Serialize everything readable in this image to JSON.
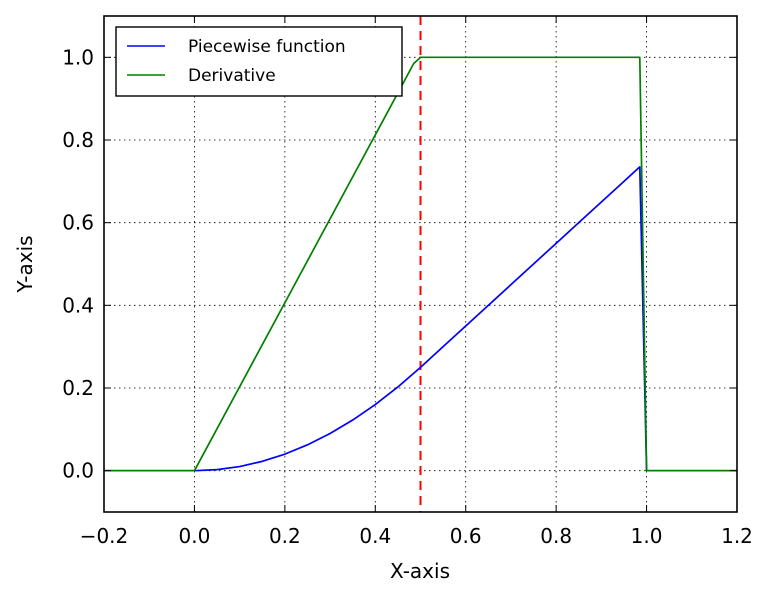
{
  "chart_data": {
    "type": "line",
    "title": "",
    "xlabel": "X-axis",
    "ylabel": "Y-axis",
    "xlim": [
      -0.2,
      1.2
    ],
    "ylim": [
      -0.1,
      1.1
    ],
    "x_ticks": [
      "−0.2",
      "0.0",
      "0.2",
      "0.4",
      "0.6",
      "0.8",
      "1.0",
      "1.2"
    ],
    "x_tick_values": [
      -0.2,
      0.0,
      0.2,
      0.4,
      0.6,
      0.8,
      1.0,
      1.2
    ],
    "y_ticks": [
      "0.0",
      "0.2",
      "0.4",
      "0.6",
      "0.8",
      "1.0"
    ],
    "y_tick_values": [
      0.0,
      0.2,
      0.4,
      0.6,
      0.8,
      1.0
    ],
    "grid": true,
    "legend_position": "upper-left",
    "series": [
      {
        "name": "Piecewise function",
        "color": "#0000ff",
        "x": [
          -0.2,
          0.0,
          0.05,
          0.1,
          0.15,
          0.2,
          0.25,
          0.3,
          0.35,
          0.4,
          0.45,
          0.5,
          0.55,
          0.6,
          0.65,
          0.7,
          0.75,
          0.8,
          0.85,
          0.9,
          0.95,
          0.985,
          1.0,
          1.2
        ],
        "y": [
          0.0,
          0.0,
          0.0025,
          0.01,
          0.0225,
          0.04,
          0.0625,
          0.09,
          0.1225,
          0.16,
          0.2025,
          0.25,
          0.3,
          0.35,
          0.4,
          0.45,
          0.5,
          0.55,
          0.6,
          0.65,
          0.7,
          0.735,
          0.0,
          0.0
        ]
      },
      {
        "name": "Derivative",
        "color": "#008000",
        "x": [
          -0.2,
          0.0,
          0.485,
          0.5,
          0.985,
          1.0,
          1.2
        ],
        "y": [
          0.0,
          0.0,
          0.985,
          1.0,
          1.0,
          0.0,
          0.0
        ]
      }
    ],
    "vline": {
      "x": 0.5,
      "color": "#ff0000",
      "style": "dashed"
    }
  }
}
